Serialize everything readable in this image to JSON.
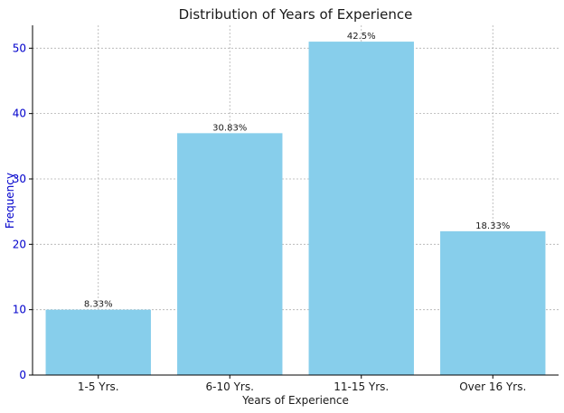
{
  "chart_data": {
    "type": "bar",
    "title": "Distribution of Years of Experience",
    "xlabel": "Years of Experience",
    "ylabel": "Frequency",
    "categories": [
      "1-5 Yrs.",
      "6-10 Yrs.",
      "11-15 Yrs.",
      "Over 16 Yrs."
    ],
    "values": [
      10,
      37,
      51,
      22
    ],
    "data_labels": [
      "8.33%",
      "30.83%",
      "42.5%",
      "18.33%"
    ],
    "ylim": [
      0,
      53.5
    ],
    "yticks": [
      0,
      10,
      20,
      30,
      40,
      50
    ],
    "grid": true,
    "bar_color": "#87ceeb",
    "ylabel_color": "#0000cc",
    "ytick_color": "#0000cc",
    "text_color": "#1a1a1a",
    "grid_color": "#b0b0b0"
  }
}
